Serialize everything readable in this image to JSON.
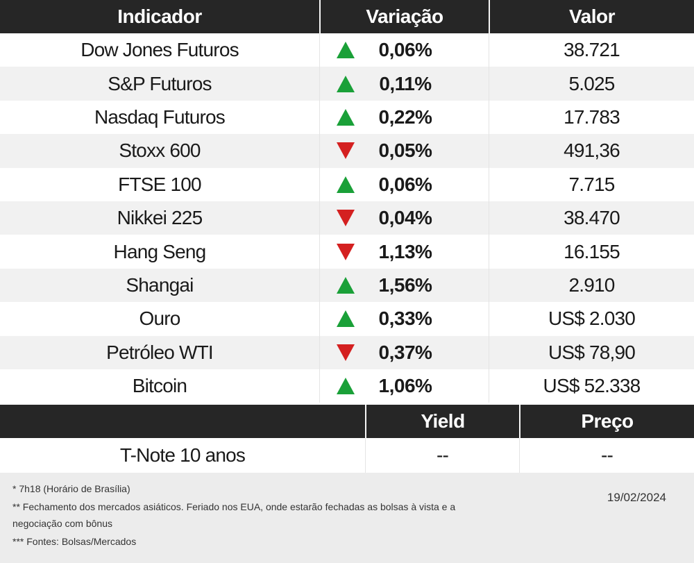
{
  "table": {
    "headers": [
      "Indicador",
      "Variação",
      "Valor"
    ],
    "rows": [
      {
        "indicador": "Dow Jones Futuros",
        "direction": "up",
        "variacao": "0,06%",
        "valor": "38.721"
      },
      {
        "indicador": "S&P Futuros",
        "direction": "up",
        "variacao": "0,11%",
        "valor": "5.025"
      },
      {
        "indicador": "Nasdaq Futuros",
        "direction": "up",
        "variacao": "0,22%",
        "valor": "17.783"
      },
      {
        "indicador": "Stoxx 600",
        "direction": "down",
        "variacao": "0,05%",
        "valor": "491,36"
      },
      {
        "indicador": "FTSE 100",
        "direction": "up",
        "variacao": "0,06%",
        "valor": "7.715"
      },
      {
        "indicador": "Nikkei 225",
        "direction": "down",
        "variacao": "0,04%",
        "valor": "38.470"
      },
      {
        "indicador": "Hang Seng",
        "direction": "down",
        "variacao": "1,13%",
        "valor": "16.155"
      },
      {
        "indicador": "Shangai",
        "direction": "up",
        "variacao": "1,56%",
        "valor": "2.910"
      },
      {
        "indicador": "Ouro",
        "direction": "up",
        "variacao": "0,33%",
        "valor": "US$ 2.030"
      },
      {
        "indicador": "Petróleo WTI",
        "direction": "down",
        "variacao": "0,37%",
        "valor": "US$ 78,90"
      },
      {
        "indicador": "Bitcoin",
        "direction": "up",
        "variacao": "1,06%",
        "valor": "US$ 52.338"
      }
    ]
  },
  "bonds": {
    "headers": [
      "",
      "Yield",
      "Preço"
    ],
    "row": {
      "name": "T-Note 10 anos",
      "yield": "--",
      "preco": "--"
    }
  },
  "notes": {
    "line1": "* 7h18 (Horário de Brasília)",
    "line2": "** Fechamento dos mercados asiáticos. Feriado nos EUA, onde estarão fechadas as bolsas à vista e a",
    "line3": "negociação com bônus",
    "line4": "*** Fontes: Bolsas/Mercados",
    "date": "19/02/2024"
  },
  "colors": {
    "header_bg": "#262626",
    "up": "#1aa038",
    "down": "#d42020",
    "row_alt": "#f1f1f1",
    "footer_bg": "#ececec"
  },
  "icons": {
    "up": "triangle-up-icon",
    "down": "triangle-down-icon"
  }
}
